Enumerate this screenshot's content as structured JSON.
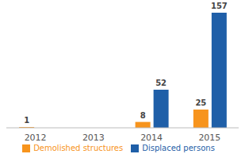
{
  "chart_data": {
    "type": "bar",
    "categories": [
      "2012",
      "2013",
      "2014",
      "2015"
    ],
    "series": [
      {
        "name": "Demolished structures",
        "color": "#f7941d",
        "values": [
          1,
          0,
          8,
          25
        ]
      },
      {
        "name": "Displaced persons",
        "color": "#1f5fa8",
        "values": [
          0,
          0,
          52,
          157
        ]
      }
    ],
    "data_labels": true,
    "legend": "bottom",
    "grid": false,
    "tick_labels": "x"
  }
}
